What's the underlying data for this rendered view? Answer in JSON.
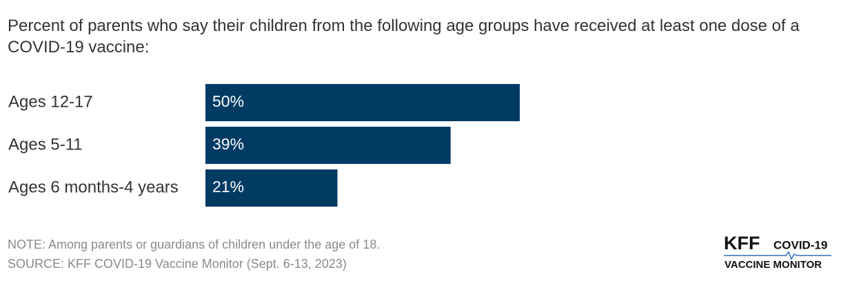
{
  "chart_data": {
    "type": "hbar",
    "title": "Percent of parents who say their children from the following age groups have received at least one dose of a COVID-19 vaccine:",
    "categories": [
      "Ages 12-17",
      "Ages 5-11",
      "Ages 6 months-4 years"
    ],
    "values": [
      50,
      39,
      21
    ],
    "value_labels": [
      "50%",
      "39%",
      "21%"
    ],
    "color": "#003b64",
    "xlim": [
      0,
      100
    ],
    "note": "NOTE: Among parents or guardians of children under the age of 18.",
    "source": "SOURCE: KFF COVID-19 Vaccine Monitor (Sept. 6-13, 2023)"
  },
  "logo": {
    "brand": "KFF",
    "line1": "COVID-19",
    "line2": "VACCINE MONITOR"
  }
}
